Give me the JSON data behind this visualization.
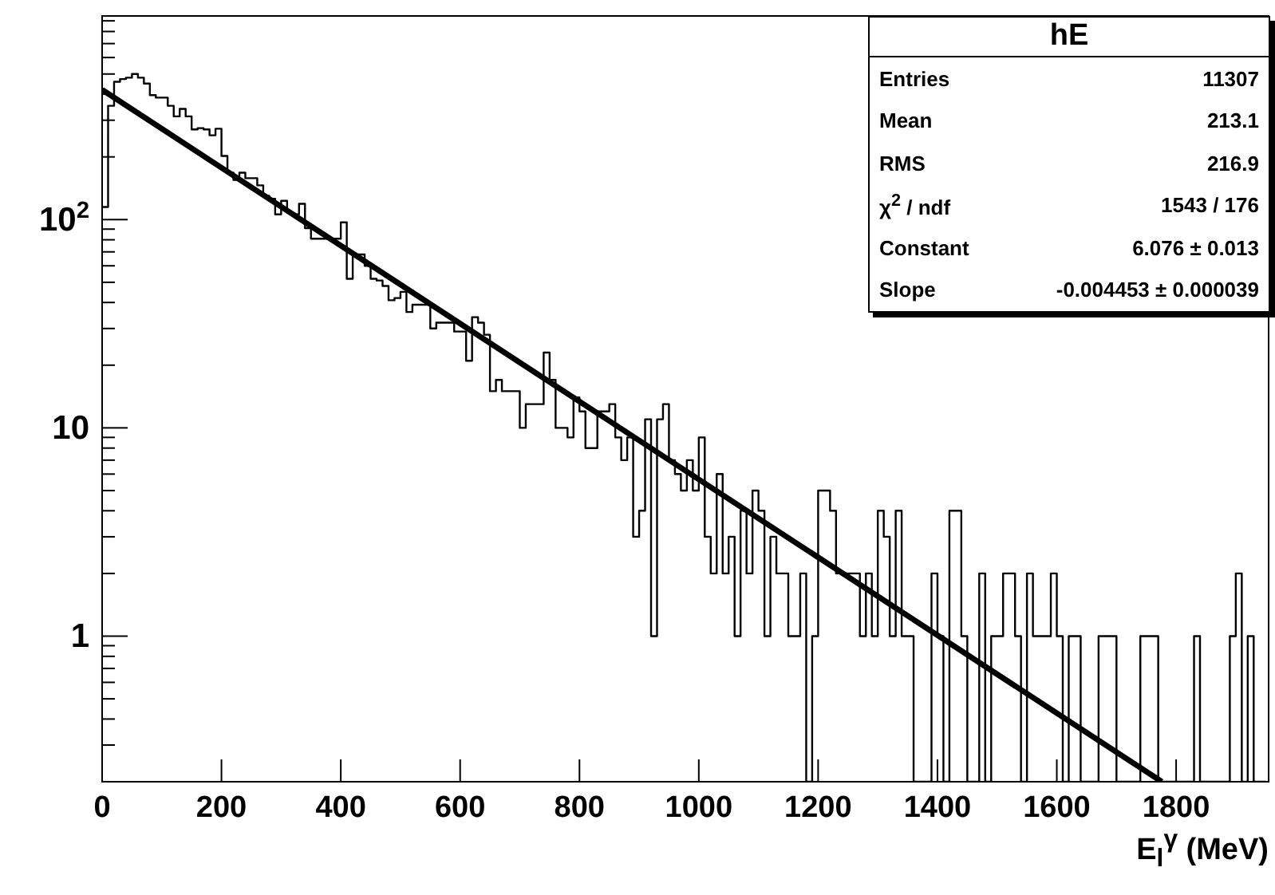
{
  "chart_data": {
    "type": "histogram",
    "xlabel": "E$_{l}$$^{γ}$ (MeV)",
    "color": "#000000",
    "bins": [
      0,
      10,
      20,
      30,
      40,
      50,
      60,
      70,
      80,
      90,
      100,
      110,
      120,
      130,
      140,
      150,
      160,
      170,
      180,
      190,
      200,
      210,
      220,
      230,
      240,
      250,
      260,
      270,
      280,
      290,
      300,
      310,
      320,
      330,
      340,
      350,
      360,
      370,
      380,
      390,
      400,
      410,
      420,
      430,
      440,
      450,
      460,
      470,
      480,
      490,
      500,
      510,
      520,
      530,
      540,
      550,
      560,
      570,
      580,
      590,
      600,
      610,
      620,
      630,
      640,
      650,
      660,
      670,
      680,
      690,
      700,
      710,
      720,
      730,
      740,
      750,
      760,
      770,
      780,
      790,
      800,
      810,
      820,
      830,
      840,
      850,
      860,
      870,
      880,
      890,
      900,
      910,
      920,
      930,
      940,
      950,
      960,
      970,
      980,
      990,
      1000,
      1010,
      1020,
      1030,
      1040,
      1050,
      1060,
      1070,
      1080,
      1090,
      1100,
      1110,
      1120,
      1130,
      1140,
      1150,
      1160,
      1170,
      1180,
      1190,
      1200,
      1210,
      1220,
      1230,
      1240,
      1250,
      1260,
      1270,
      1280,
      1290,
      1300,
      1310,
      1320,
      1330,
      1340,
      1350,
      1360,
      1370,
      1380,
      1390,
      1400,
      1410,
      1420,
      1430,
      1440,
      1450,
      1460,
      1470,
      1480,
      1490,
      1500,
      1510,
      1520,
      1530,
      1540,
      1550,
      1560,
      1570,
      1580,
      1590,
      1600,
      1610,
      1620,
      1630,
      1640,
      1650,
      1660,
      1670,
      1680,
      1690,
      1700,
      1710,
      1720,
      1730,
      1740,
      1750,
      1760,
      1770,
      1780,
      1790,
      1800,
      1810,
      1820,
      1830,
      1840,
      1850,
      1860,
      1870,
      1880,
      1890,
      1900,
      1910,
      1920,
      1930,
      1940,
      1950
    ],
    "values": [
      115,
      352,
      459,
      473,
      480,
      500,
      480,
      450,
      396,
      385,
      385,
      352,
      313,
      340,
      313,
      271,
      275,
      271,
      254,
      273,
      202,
      168,
      155,
      168,
      158,
      158,
      146,
      130,
      126,
      106,
      123,
      108,
      106,
      119,
      91,
      81,
      81,
      81,
      81,
      81,
      97,
      52,
      68,
      68,
      60,
      52,
      51,
      48,
      41,
      42,
      45,
      36,
      39,
      39,
      39,
      30,
      32,
      32,
      32,
      29,
      29,
      21,
      34,
      32,
      28,
      15,
      17,
      15,
      15,
      15,
      10,
      13,
      13,
      13,
      23,
      17,
      10,
      10,
      9,
      14,
      12,
      8,
      8,
      12,
      12,
      13,
      9,
      7,
      9,
      3,
      4,
      11,
      1,
      11,
      13,
      7,
      6,
      5,
      7,
      5,
      9,
      3,
      2,
      6,
      2,
      3,
      1,
      4,
      2,
      5,
      4,
      1,
      3,
      2,
      2,
      1,
      1,
      2,
      null,
      1,
      5,
      5,
      4,
      2,
      2,
      2,
      2,
      1,
      2,
      1,
      4,
      3,
      1,
      4,
      1,
      1,
      null,
      null,
      null,
      2,
      1,
      null,
      4,
      4,
      1,
      null,
      null,
      2,
      null,
      1,
      1,
      2,
      2,
      1,
      null,
      2,
      1,
      1,
      1,
      2,
      1,
      null,
      1,
      1,
      null,
      null,
      null,
      1,
      1,
      1,
      null,
      null,
      null,
      null,
      1,
      1,
      1,
      null,
      null,
      null,
      null,
      null,
      null,
      1,
      null,
      null,
      null,
      null,
      null,
      1,
      2,
      null,
      1,
      null,
      null
    ],
    "series": [
      {
        "type": "line",
        "color": "#000000",
        "x": [
          0,
          1776
        ],
        "values": [
          420,
          0.2
        ]
      }
    ],
    "log": "y",
    "xlim": [
      0,
      1955
    ],
    "ylim": [
      0.2,
      950
    ],
    "xticks": [
      0,
      200,
      400,
      600,
      800,
      1000,
      1200,
      1400,
      1600,
      1800
    ],
    "yticks": [
      {
        "value": 0.2,
        "label": null
      },
      {
        "value": 0.3,
        "label": null
      },
      {
        "value": 0.4,
        "label": null
      },
      {
        "value": 0.5,
        "label": null
      },
      {
        "value": 0.6,
        "label": null
      },
      {
        "value": 0.7,
        "label": null
      },
      {
        "value": 0.8,
        "label": null
      },
      {
        "value": 0.9,
        "label": null
      },
      1,
      {
        "value": 2,
        "label": null
      },
      {
        "value": 3,
        "label": null
      },
      {
        "value": 4,
        "label": null
      },
      {
        "value": 5,
        "label": null
      },
      {
        "value": 6,
        "label": null
      },
      {
        "value": 7,
        "label": null
      },
      {
        "value": 8,
        "label": null
      },
      {
        "value": 9,
        "label": null
      },
      10,
      {
        "value": 20,
        "label": null
      },
      {
        "value": 30,
        "label": null
      },
      {
        "value": 40,
        "label": null
      },
      {
        "value": 50,
        "label": null
      },
      {
        "value": 60,
        "label": null
      },
      {
        "value": 70,
        "label": null
      },
      {
        "value": 80,
        "label": null
      },
      {
        "value": 90,
        "label": null
      },
      {
        "value": 100,
        "label": "10$^{2}$"
      },
      {
        "value": 200,
        "label": null
      },
      {
        "value": 300,
        "label": null
      },
      {
        "value": 400,
        "label": null
      },
      {
        "value": 500,
        "label": null
      },
      {
        "value": 600,
        "label": null
      },
      {
        "value": 700,
        "label": null
      },
      {
        "value": 800,
        "label": null
      },
      {
        "value": 900,
        "label": null
      }
    ],
    "annotations": [
      "hE",
      "Entries",
      "11307",
      "Mean",
      "213.1",
      "RMS",
      "216.9",
      "χ$^{2}$ / ndf",
      "1543 / 176",
      "Constant",
      "6.076 ± 0.013",
      "Slope",
      "-0.004453 ± 0.000039"
    ],
    "grid": false,
    "legend": false
  }
}
